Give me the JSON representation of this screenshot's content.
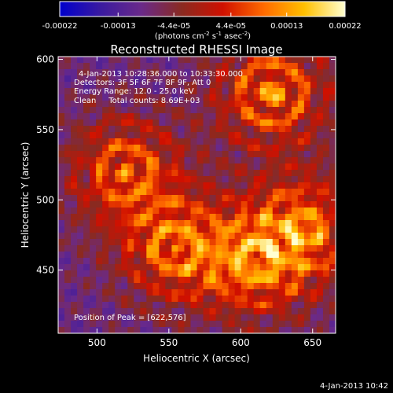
{
  "colorbar": {
    "tick_labels": [
      "-0.00022",
      "-0.00013",
      "-4.4e-05",
      "4.4e-05",
      "0.00013",
      "0.00022"
    ],
    "tick_values": [
      -0.00022,
      -0.00013,
      -4.4e-05,
      4.4e-05,
      0.00013,
      0.00022
    ],
    "range": [
      -0.00022,
      0.00022
    ],
    "units_prefix": "(photons cm",
    "units_exp1": "-2",
    "units_mid": " s",
    "units_exp2": "-1",
    "units_mid2": " asec",
    "units_exp3": "-2",
    "units_suffix": ")",
    "colors": [
      "#0000cc",
      "#3a1aa0",
      "#6a2a8a",
      "#8a2a20",
      "#d01000",
      "#ff6a00",
      "#ffc000",
      "#ffffd0"
    ]
  },
  "chart_data": {
    "type": "heatmap",
    "title": "Reconstructed RHESSI Image",
    "xlabel": "Heliocentric X (arcsec)",
    "ylabel": "Heliocentric Y (arcsec)",
    "xlim": [
      473,
      666
    ],
    "ylim": [
      405,
      602
    ],
    "x_ticks": [
      500,
      550,
      600,
      650
    ],
    "y_ticks": [
      450,
      500,
      550,
      600
    ],
    "x_tick_labels": [
      "500",
      "550",
      "600",
      "650"
    ],
    "y_tick_labels": [
      "450",
      "500",
      "550",
      "600"
    ],
    "annotations": [
      "4-Jan-2013 10:28:36.000 to 10:33:30.000",
      "Detectors: 3F 5F 6F 7F 8F 9F, Att 0",
      "Energy Range: 12.0 - 25.0 keV",
      "Clean     Total counts: 8.69E+03"
    ],
    "peak_label": "Position of Peak = [622,576]",
    "peak_position": [
      622,
      576
    ],
    "hot_regions": [
      {
        "x": 622,
        "y": 576
      },
      {
        "x": 520,
        "y": 520
      },
      {
        "x": 555,
        "y": 465
      },
      {
        "x": 610,
        "y": 455
      },
      {
        "x": 645,
        "y": 480
      }
    ]
  },
  "footer": {
    "date": "4-Jan-2013 10:42"
  }
}
